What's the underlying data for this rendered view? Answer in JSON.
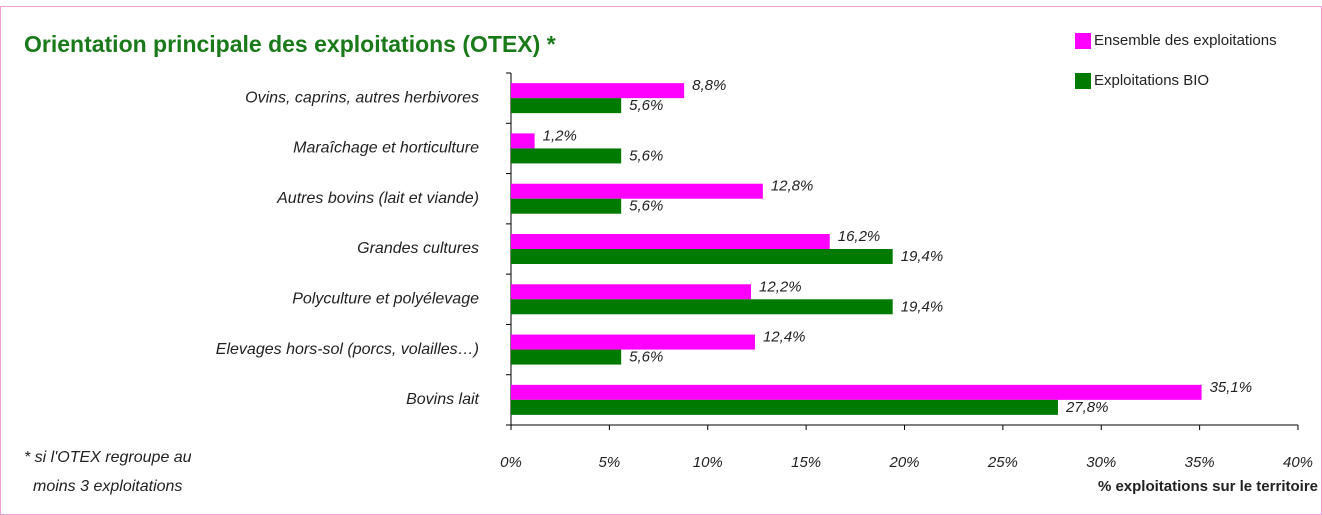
{
  "chart_data": {
    "type": "bar",
    "orientation": "horizontal",
    "title": "Orientation principale des exploitations (OTEX) *",
    "categories": [
      "Ovins, caprins, autres herbivores",
      "Maraîchage et horticulture",
      "Autres bovins (lait et viande)",
      "Grandes cultures",
      "Polyculture et polyélevage",
      "Elevages hors-sol (porcs, volailles…)",
      "Bovins lait"
    ],
    "series": [
      {
        "name": "Ensemble des exploitations",
        "color": "#ff00ff",
        "values": [
          8.8,
          1.2,
          12.8,
          16.2,
          12.2,
          12.4,
          35.1
        ],
        "value_labels": [
          "8,8%",
          "1,2%",
          "12,8%",
          "16,2%",
          "12,2%",
          "12,4%",
          "35,1%"
        ]
      },
      {
        "name": "Exploitations BIO",
        "color": "#007a00",
        "values": [
          5.6,
          5.6,
          5.6,
          19.4,
          19.4,
          5.6,
          27.8
        ],
        "value_labels": [
          "5,6%",
          "5,6%",
          "5,6%",
          "19,4%",
          "19,4%",
          "5,6%",
          "27,8%"
        ]
      }
    ],
    "xlim": [
      0,
      40
    ],
    "xticks": [
      {
        "value": 0,
        "label": "0%"
      },
      {
        "value": 5,
        "label": "5%"
      },
      {
        "value": 10,
        "label": "10%"
      },
      {
        "value": 15,
        "label": "15%"
      },
      {
        "value": 20,
        "label": "20%"
      },
      {
        "value": 25,
        "label": "25%"
      },
      {
        "value": 30,
        "label": "30%"
      },
      {
        "value": 35,
        "label": "35%"
      },
      {
        "value": 40,
        "label": "40%"
      }
    ],
    "xlabel": "% exploitations sur le territoire",
    "note": [
      "* si l'OTEX regroupe au",
      "moins 3 exploitations"
    ],
    "legend": "top-right",
    "grid": false
  }
}
